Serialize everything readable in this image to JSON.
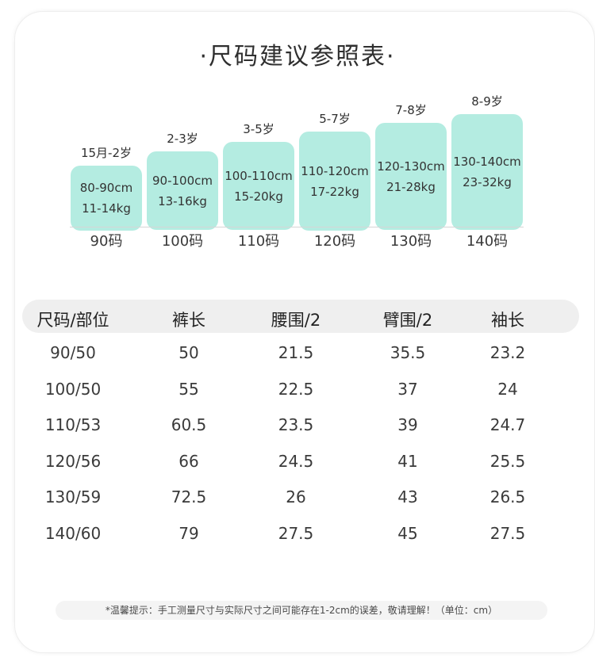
{
  "title": "·尺码建议参照表·",
  "sizes": [
    {
      "age": "15月-2岁",
      "height": "80-90cm",
      "weight": "11-14kg",
      "label": "90码"
    },
    {
      "age": "2-3岁",
      "height": "90-100cm",
      "weight": "13-16kg",
      "label": "100码"
    },
    {
      "age": "3-5岁",
      "height": "100-110cm",
      "weight": "15-20kg",
      "label": "110码"
    },
    {
      "age": "5-7岁",
      "height": "110-120cm",
      "weight": "17-22kg",
      "label": "120码"
    },
    {
      "age": "7-8岁",
      "height": "120-130cm",
      "weight": "21-28kg",
      "label": "130码"
    },
    {
      "age": "8-9岁",
      "height": "130-140cm",
      "weight": "23-32kg",
      "label": "140码"
    }
  ],
  "table": {
    "headers": [
      "尺码/部位",
      "裤长",
      "腰围/2",
      "臂围/2",
      "袖长"
    ],
    "rows": [
      [
        "90/50",
        "50",
        "21.5",
        "35.5",
        "23.2"
      ],
      [
        "100/50",
        "55",
        "22.5",
        "37",
        "24"
      ],
      [
        "110/53",
        "60.5",
        "23.5",
        "39",
        "24.7"
      ],
      [
        "120/56",
        "66",
        "24.5",
        "41",
        "25.5"
      ],
      [
        "130/59",
        "72.5",
        "26",
        "43",
        "26.5"
      ],
      [
        "140/60",
        "79",
        "27.5",
        "45",
        "27.5"
      ]
    ]
  },
  "note": "*温馨提示：手工测量尺寸与实际尺寸之间可能存在1-2cm的误差，敬请理解！（单位：cm）",
  "colors": {
    "block": "#b4ece1",
    "header_bg": "#efefef"
  }
}
